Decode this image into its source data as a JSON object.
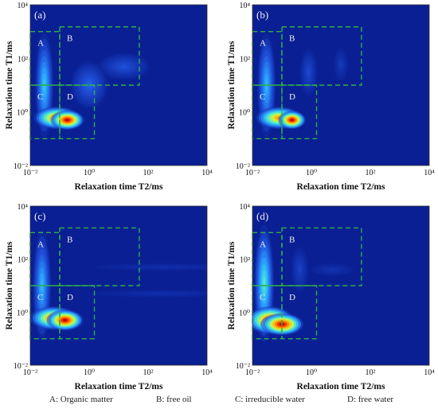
{
  "colors": {
    "background": "#0a1f93",
    "box_line": "#2db04a",
    "panel_label": "#f0f0f0",
    "colormap": [
      "#0a1f93",
      "#1f4fd8",
      "#2aa6ff",
      "#4cf0d0",
      "#d8f53a",
      "#ffb000",
      "#ff3a00",
      "#c00000"
    ]
  },
  "caption": {
    "a": "A: Organic matter",
    "b": "B: free oil",
    "c": "C: irreducible water",
    "d": "D: free water"
  },
  "chart_data": [
    {
      "type": "heatmap",
      "panel_label": "(a)",
      "xlabel": "Relaxation   time T2/ms",
      "ylabel": "Relaxation   time T1/ms",
      "x_scale": "log",
      "y_scale": "log",
      "xlim": [
        0.01,
        10000
      ],
      "ylim": [
        0.01,
        10000
      ],
      "x_ticks": [
        "10⁻²",
        "10⁰",
        "10²",
        "10⁴"
      ],
      "y_ticks": [
        "10⁻²",
        "10⁰",
        "10²",
        "10⁴"
      ],
      "regions": [
        {
          "label": "A",
          "t2": [
            0.01,
            0.1
          ],
          "t1": [
            10,
            1000
          ]
        },
        {
          "label": "B",
          "t2": [
            0.1,
            50
          ],
          "t1": [
            10,
            1500
          ]
        },
        {
          "label": "C",
          "t2": [
            0.01,
            0.1
          ],
          "t1": [
            0.1,
            10
          ]
        },
        {
          "label": "D",
          "t2": [
            0.1,
            1.5
          ],
          "t1": [
            0.1,
            10
          ]
        }
      ],
      "peaks": [
        {
          "t2": 0.18,
          "t1": 0.5,
          "intensity": 1.0,
          "spread_t2": 0.22,
          "spread_t1": 0.14
        },
        {
          "t2": 0.08,
          "t1": 0.6,
          "intensity": 0.8,
          "spread_t2": 0.3,
          "spread_t1": 0.16
        },
        {
          "t2": 0.03,
          "t1": 10,
          "intensity": 0.35,
          "spread_t2": 0.12,
          "spread_t1": 0.75
        },
        {
          "t2": 1.0,
          "t1": 10,
          "intensity": 0.18,
          "spread_t2": 0.25,
          "spread_t1": 0.35
        },
        {
          "t2": 15,
          "t1": 50,
          "intensity": 0.14,
          "spread_t2": 0.35,
          "spread_t1": 0.2
        }
      ]
    },
    {
      "type": "heatmap",
      "panel_label": "(b)",
      "xlabel": "Relaxation   time T2/ms",
      "ylabel": "Relaxation   time T1/ms",
      "x_scale": "log",
      "y_scale": "log",
      "xlim": [
        0.01,
        10000
      ],
      "ylim": [
        0.01,
        10000
      ],
      "x_ticks": [
        "10⁻²",
        "10⁰",
        "10²",
        "10⁴"
      ],
      "y_ticks": [
        "10⁻²",
        "10⁰",
        "10²",
        "10⁴"
      ],
      "regions": [
        {
          "label": "A",
          "t2": [
            0.01,
            0.1
          ],
          "t1": [
            10,
            1000
          ]
        },
        {
          "label": "B",
          "t2": [
            0.1,
            50
          ],
          "t1": [
            10,
            1500
          ]
        },
        {
          "label": "C",
          "t2": [
            0.01,
            0.1
          ],
          "t1": [
            0.1,
            10
          ]
        },
        {
          "label": "D",
          "t2": [
            0.1,
            1.5
          ],
          "t1": [
            0.1,
            10
          ]
        }
      ],
      "peaks": [
        {
          "t2": 0.22,
          "t1": 0.5,
          "intensity": 1.0,
          "spread_t2": 0.18,
          "spread_t1": 0.13
        },
        {
          "t2": 0.08,
          "t1": 0.6,
          "intensity": 0.75,
          "spread_t2": 0.3,
          "spread_t1": 0.16
        },
        {
          "t2": 0.03,
          "t1": 10,
          "intensity": 0.32,
          "spread_t2": 0.12,
          "spread_t1": 0.75
        },
        {
          "t2": 0.8,
          "t1": 30,
          "intensity": 0.12,
          "spread_t2": 0.12,
          "spread_t1": 0.35
        },
        {
          "t2": 10,
          "t1": 60,
          "intensity": 0.08,
          "spread_t2": 0.1,
          "spread_t1": 0.25
        }
      ]
    },
    {
      "type": "heatmap",
      "panel_label": "(c)",
      "xlabel": "Relaxation   time T2/ms",
      "ylabel": "Relaxation   time T1/ms",
      "x_scale": "log",
      "y_scale": "log",
      "xlim": [
        0.01,
        10000
      ],
      "ylim": [
        0.01,
        10000
      ],
      "x_ticks": [
        "10⁻²",
        "10⁰",
        "10²",
        "10⁴"
      ],
      "y_ticks": [
        "10⁻²",
        "10⁰",
        "10²",
        "10⁴"
      ],
      "regions": [
        {
          "label": "A",
          "t2": [
            0.01,
            0.1
          ],
          "t1": [
            10,
            1000
          ]
        },
        {
          "label": "B",
          "t2": [
            0.1,
            50
          ],
          "t1": [
            10,
            1500
          ]
        },
        {
          "label": "C",
          "t2": [
            0.01,
            0.1
          ],
          "t1": [
            0.1,
            10
          ]
        },
        {
          "label": "D",
          "t2": [
            0.1,
            1.5
          ],
          "t1": [
            0.1,
            10
          ]
        }
      ],
      "peaks": [
        {
          "t2": 0.15,
          "t1": 0.5,
          "intensity": 1.0,
          "spread_t2": 0.24,
          "spread_t1": 0.15
        },
        {
          "t2": 0.06,
          "t1": 0.6,
          "intensity": 0.8,
          "spread_t2": 0.3,
          "spread_t1": 0.17
        },
        {
          "t2": 0.025,
          "t1": 10,
          "intensity": 0.32,
          "spread_t2": 0.12,
          "spread_t1": 0.8
        },
        {
          "t2": 300,
          "t1": 50,
          "intensity": 0.05,
          "spread_t2": 1.0,
          "spread_t1": 0.06
        },
        {
          "t2": 300,
          "t1": 5,
          "intensity": 0.05,
          "spread_t2": 1.0,
          "spread_t1": 0.06
        }
      ]
    },
    {
      "type": "heatmap",
      "panel_label": "(d)",
      "xlabel": "Relaxation   time T2/ms",
      "ylabel": "Relaxation   time T1/ms",
      "x_scale": "log",
      "y_scale": "log",
      "xlim": [
        0.01,
        10000
      ],
      "ylim": [
        0.01,
        10000
      ],
      "x_ticks": [
        "10⁻²",
        "10⁰",
        "10²",
        "10⁴"
      ],
      "y_ticks": [
        "10⁻²",
        "10⁰",
        "10²",
        "10⁴"
      ],
      "regions": [
        {
          "label": "A",
          "t2": [
            0.01,
            0.1
          ],
          "t1": [
            10,
            1000
          ]
        },
        {
          "label": "B",
          "t2": [
            0.1,
            50
          ],
          "t1": [
            10,
            1500
          ]
        },
        {
          "label": "C",
          "t2": [
            0.01,
            0.1
          ],
          "t1": [
            0.1,
            10
          ]
        },
        {
          "label": "D",
          "t2": [
            0.1,
            1.5
          ],
          "t1": [
            0.1,
            10
          ]
        }
      ],
      "peaks": [
        {
          "t2": 0.1,
          "t1": 0.35,
          "intensity": 1.0,
          "spread_t2": 0.28,
          "spread_t1": 0.16
        },
        {
          "t2": 0.04,
          "t1": 0.5,
          "intensity": 0.9,
          "spread_t2": 0.3,
          "spread_t1": 0.2
        },
        {
          "t2": 0.025,
          "t1": 12,
          "intensity": 0.42,
          "spread_t2": 0.13,
          "spread_t1": 0.85
        },
        {
          "t2": 0.4,
          "t1": 40,
          "intensity": 0.1,
          "spread_t2": 0.12,
          "spread_t1": 0.35
        },
        {
          "t2": 5,
          "t1": 40,
          "intensity": 0.06,
          "spread_t2": 0.3,
          "spread_t1": 0.1
        }
      ]
    }
  ]
}
